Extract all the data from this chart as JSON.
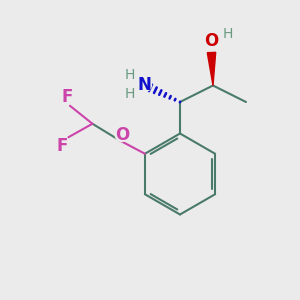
{
  "bg_color": "#ebebeb",
  "bond_color": "#4a7a6a",
  "bond_width": 1.5,
  "atom_colors": {
    "N": "#1010cc",
    "O_red": "#cc0000",
    "O_magenta": "#cc44aa",
    "F": "#cc44aa",
    "H_gray": "#6a9a80",
    "C": "#4a7a6a"
  },
  "figsize": [
    3.0,
    3.0
  ],
  "dpi": 100,
  "xlim": [
    0,
    10
  ],
  "ylim": [
    0,
    10
  ]
}
